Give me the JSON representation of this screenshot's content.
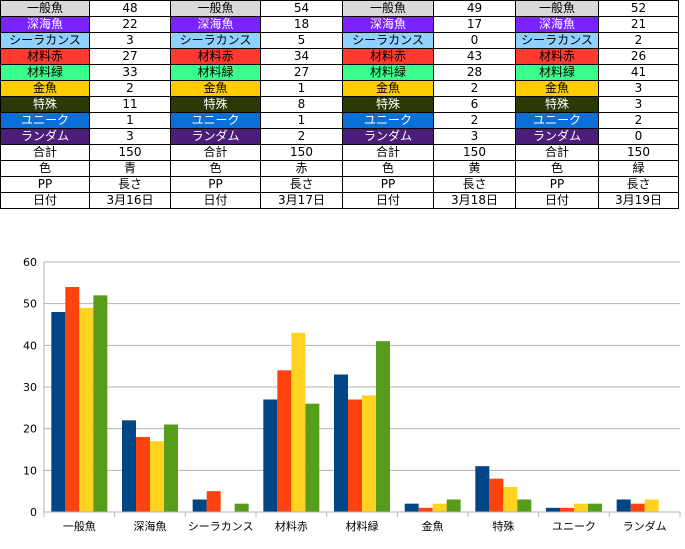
{
  "sheet": {
    "label_styles": [
      {
        "bg": "#d9d9d9",
        "fg": "#000000"
      },
      {
        "bg": "#7a23ff",
        "fg": "#ffffff"
      },
      {
        "bg": "#8fd1ff",
        "fg": "#000000"
      },
      {
        "bg": "#ff3b30",
        "fg": "#000000"
      },
      {
        "bg": "#39ff8c",
        "fg": "#000000"
      },
      {
        "bg": "#ffcc00",
        "fg": "#000000"
      },
      {
        "bg": "#2b3a04",
        "fg": "#ffffff"
      },
      {
        "bg": "#0a6fd6",
        "fg": "#ffffff"
      },
      {
        "bg": "#4a1e7a",
        "fg": "#ffffff"
      },
      {
        "bg": "#ffffff",
        "fg": "#000000"
      },
      {
        "bg": "#ffffff",
        "fg": "#000000"
      },
      {
        "bg": "#ffffff",
        "fg": "#000000"
      },
      {
        "bg": "#ffffff",
        "fg": "#000000"
      }
    ],
    "rows": [
      [
        "一般魚",
        "48",
        "一般魚",
        "54",
        "一般魚",
        "49",
        "一般魚",
        "52"
      ],
      [
        "深海魚",
        "22",
        "深海魚",
        "18",
        "深海魚",
        "17",
        "深海魚",
        "21"
      ],
      [
        "シーラカンス",
        "3",
        "シーラカンス",
        "5",
        "シーラカンス",
        "0",
        "シーラカンス",
        "2"
      ],
      [
        "材料赤",
        "27",
        "材料赤",
        "34",
        "材料赤",
        "43",
        "材料赤",
        "26"
      ],
      [
        "材料緑",
        "33",
        "材料緑",
        "27",
        "材料緑",
        "28",
        "材料緑",
        "41"
      ],
      [
        "金魚",
        "2",
        "金魚",
        "1",
        "金魚",
        "2",
        "金魚",
        "3"
      ],
      [
        "特殊",
        "11",
        "特殊",
        "8",
        "特殊",
        "6",
        "特殊",
        "3"
      ],
      [
        "ユニーク",
        "1",
        "ユニーク",
        "1",
        "ユニーク",
        "2",
        "ユニーク",
        "2"
      ],
      [
        "ランダム",
        "3",
        "ランダム",
        "2",
        "ランダム",
        "3",
        "ランダム",
        "0"
      ],
      [
        "合計",
        "150",
        "合計",
        "150",
        "合計",
        "150",
        "合計",
        "150"
      ],
      [
        "色",
        "青",
        "色",
        "赤",
        "色",
        "黄",
        "色",
        "緑"
      ],
      [
        "PP",
        "長さ",
        "PP",
        "長さ",
        "PP",
        "長さ",
        "PP",
        "長さ"
      ],
      [
        "日付",
        "3月16日",
        "日付",
        "3月17日",
        "日付",
        "3月18日",
        "日付",
        "3月19日"
      ]
    ]
  },
  "chart_data": {
    "type": "bar",
    "categories": [
      "一般魚",
      "深海魚",
      "シーラカンス",
      "材料赤",
      "材料緑",
      "金魚",
      "特殊",
      "ユニーク",
      "ランダム"
    ],
    "series": [
      {
        "values": [
          48,
          22,
          3,
          27,
          33,
          2,
          11,
          1,
          3
        ],
        "color": "#004586"
      },
      {
        "values": [
          54,
          18,
          5,
          34,
          27,
          1,
          8,
          1,
          2
        ],
        "color": "#ff420e"
      },
      {
        "values": [
          49,
          17,
          0,
          43,
          28,
          2,
          6,
          2,
          3
        ],
        "color": "#ffd320"
      },
      {
        "values": [
          52,
          21,
          2,
          26,
          41,
          3,
          3,
          2,
          0
        ],
        "color": "#579d1c"
      }
    ],
    "ylim": [
      0,
      60
    ],
    "yticks": [
      "0",
      "10",
      "20",
      "30",
      "40",
      "50",
      "60"
    ],
    "grid": true,
    "legend": "none"
  }
}
